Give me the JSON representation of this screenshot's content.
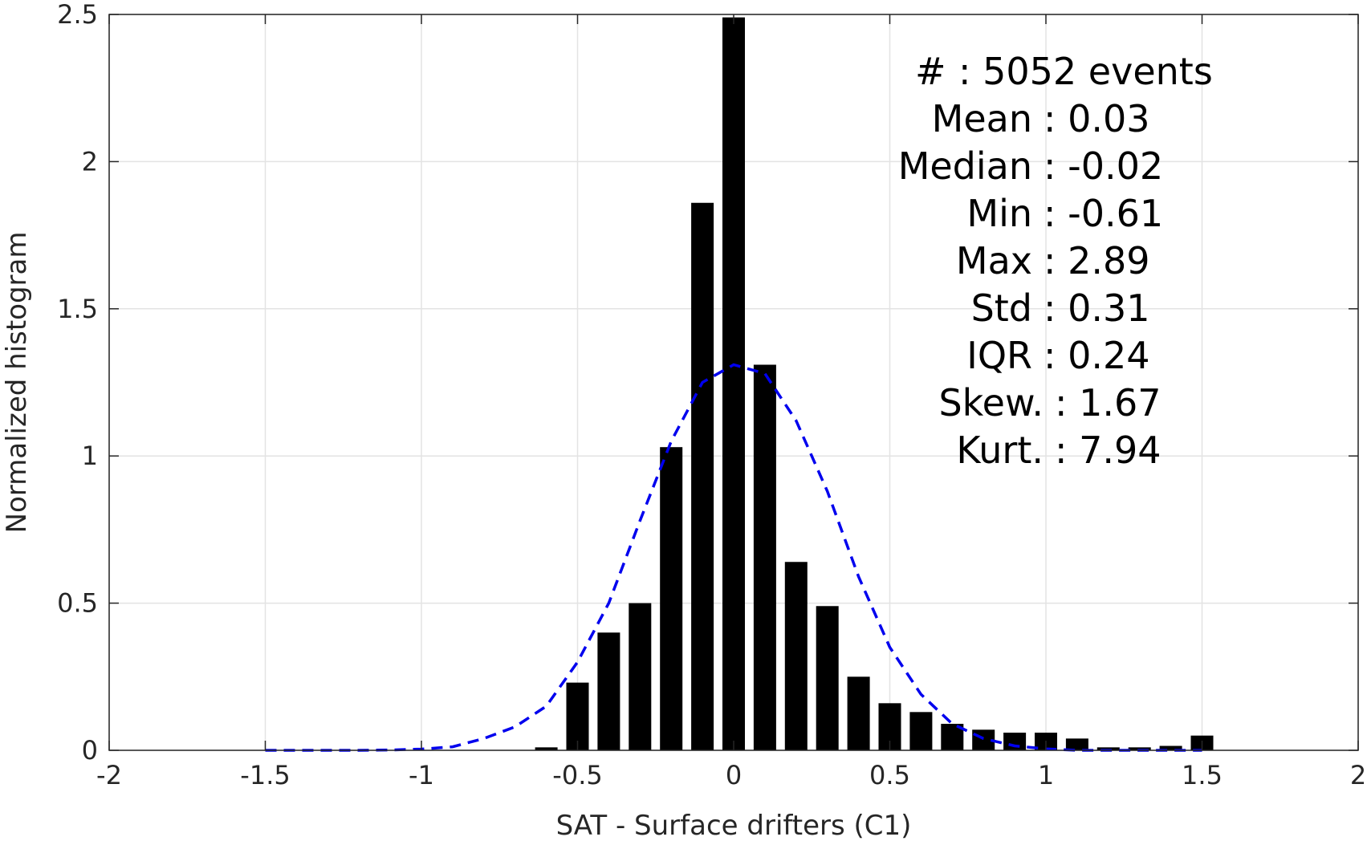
{
  "chart_data": {
    "type": "bar",
    "title": "",
    "xlabel": "SAT - Surface drifters (C1)",
    "ylabel": "Normalized histogram",
    "xlim": [
      -2,
      2
    ],
    "ylim": [
      0,
      2.5
    ],
    "xticks": [
      -2,
      -1.5,
      -1,
      -0.5,
      0,
      0.5,
      1,
      1.5,
      2
    ],
    "xtick_labels": [
      "-2",
      "-1.5",
      "-1",
      "-0.5",
      "0",
      "0.5",
      "1",
      "1.5",
      "2"
    ],
    "yticks": [
      0,
      0.5,
      1,
      1.5,
      2,
      2.5
    ],
    "ytick_labels": [
      "0",
      "0.5",
      "1",
      "1.5",
      "2",
      "2.5"
    ],
    "grid": true,
    "bar_color": "#000000",
    "bin_width": 0.1,
    "bin_centers": [
      -0.6,
      -0.5,
      -0.4,
      -0.3,
      -0.2,
      -0.1,
      0.0,
      0.1,
      0.2,
      0.3,
      0.4,
      0.5,
      0.6,
      0.7,
      0.8,
      0.9,
      1.0,
      1.1,
      1.2,
      1.3,
      1.4,
      1.5
    ],
    "values": [
      0.01,
      0.23,
      0.4,
      0.5,
      1.03,
      1.86,
      2.49,
      1.31,
      0.64,
      0.49,
      0.25,
      0.16,
      0.13,
      0.09,
      0.07,
      0.06,
      0.06,
      0.04,
      0.01,
      0.01,
      0.015,
      0.05
    ],
    "fit_curve": {
      "style": "dashed",
      "color": "#0000ee",
      "x": [
        -1.5,
        -1.4,
        -1.3,
        -1.2,
        -1.1,
        -1.0,
        -0.9,
        -0.8,
        -0.7,
        -0.6,
        -0.5,
        -0.4,
        -0.3,
        -0.2,
        -0.1,
        0.0,
        0.1,
        0.2,
        0.3,
        0.4,
        0.5,
        0.6,
        0.7,
        0.8,
        0.9,
        1.0,
        1.1,
        1.2,
        1.3,
        1.4,
        1.5
      ],
      "y": [
        0.0,
        0.0,
        0.0,
        0.0,
        0.001,
        0.004,
        0.012,
        0.04,
        0.08,
        0.15,
        0.3,
        0.5,
        0.78,
        1.05,
        1.25,
        1.31,
        1.28,
        1.12,
        0.88,
        0.59,
        0.35,
        0.19,
        0.09,
        0.04,
        0.015,
        0.005,
        0.0,
        0.0,
        0.0,
        0.0,
        0.0
      ]
    },
    "annotations": [
      {
        "label": "#",
        "value": ": 5052 events"
      },
      {
        "label": "Mean",
        "value": ": 0.03"
      },
      {
        "label": "Median",
        "value": ": -0.02"
      },
      {
        "label": "Min",
        "value": ": -0.61"
      },
      {
        "label": "Max",
        "value": ": 2.89"
      },
      {
        "label": "Std",
        "value": ": 0.31"
      },
      {
        "label": "IQR",
        "value": ": 0.24"
      },
      {
        "label": "Skew.",
        "value": ": 1.67"
      },
      {
        "label": "Kurt.",
        "value": ": 7.94"
      }
    ]
  }
}
